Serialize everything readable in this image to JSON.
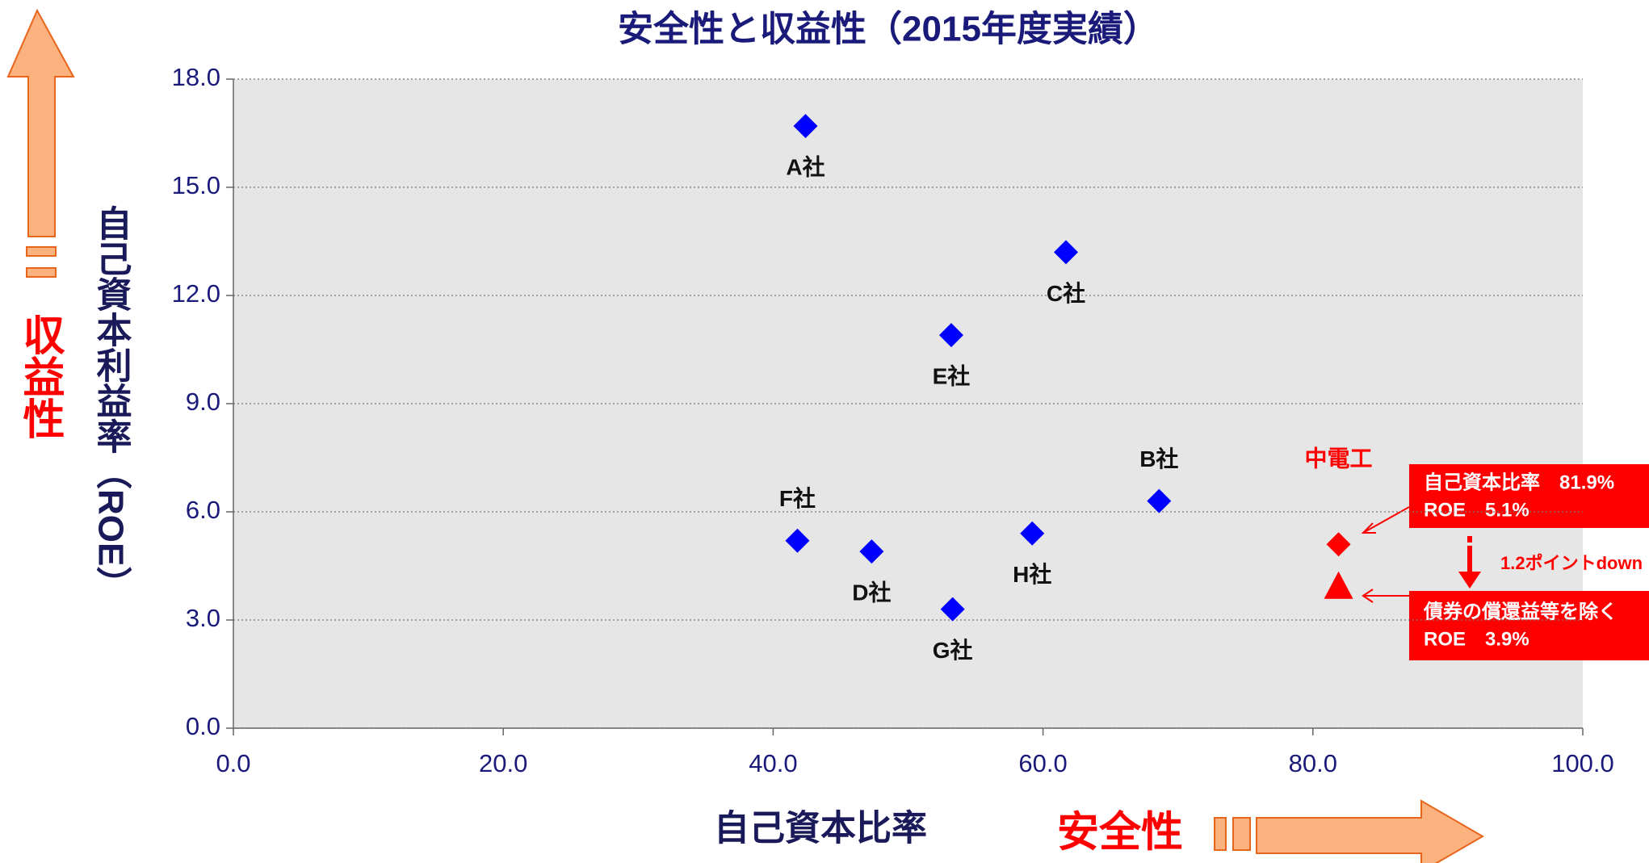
{
  "chart_data": {
    "type": "scatter",
    "title": "安全性と収益性（2015年度実績）",
    "x_label": "自己資本比率",
    "y_label": "自己資本利益率（ROE）",
    "xlim": [
      0,
      100
    ],
    "ylim": [
      0,
      18
    ],
    "xticks": [
      {
        "value": 0,
        "label": "0.0"
      },
      {
        "value": 20,
        "label": "20.0"
      },
      {
        "value": 40,
        "label": "40.0"
      },
      {
        "value": 60,
        "label": "60.0"
      },
      {
        "value": 80,
        "label": "80.0"
      },
      {
        "value": 100,
        "label": "100.0"
      }
    ],
    "yticks": [
      {
        "value": 0,
        "label": "0.0"
      },
      {
        "value": 3,
        "label": "3.0"
      },
      {
        "value": 6,
        "label": "6.0"
      },
      {
        "value": 9,
        "label": "9.0"
      },
      {
        "value": 12,
        "label": "12.0"
      },
      {
        "value": 15,
        "label": "15.0"
      },
      {
        "value": 18,
        "label": "18.0"
      }
    ],
    "grid": true,
    "series": [
      {
        "color": "#0000ff",
        "marker": "diamond",
        "x": [
          42.4,
          61.7,
          53.2,
          68.6,
          41.8,
          47.3,
          59.2,
          53.3
        ],
        "values": [
          16.7,
          13.2,
          10.9,
          6.3,
          5.2,
          4.9,
          5.4,
          3.3
        ],
        "point_labels": [
          "A社",
          "C社",
          "E社",
          "B社",
          "F社",
          "D社",
          "H社",
          "G社"
        ]
      },
      {
        "color": "#ff0000",
        "marker": "diamond",
        "x": [
          81.9
        ],
        "values": [
          5.1
        ],
        "point_labels": [
          "中電工"
        ]
      },
      {
        "color": "#ff0000",
        "marker": "triangle",
        "x": [
          81.9
        ],
        "values": [
          3.9
        ]
      }
    ],
    "annotations": {
      "box1": [
        "自己資本比率　81.9%",
        "ROE　5.1%"
      ],
      "box2": [
        "債券の償還益等を除く",
        "ROE　3.9%"
      ],
      "change": "1.2ポイントdown",
      "y_arrow": "収益性",
      "x_arrow": "安全性"
    }
  }
}
